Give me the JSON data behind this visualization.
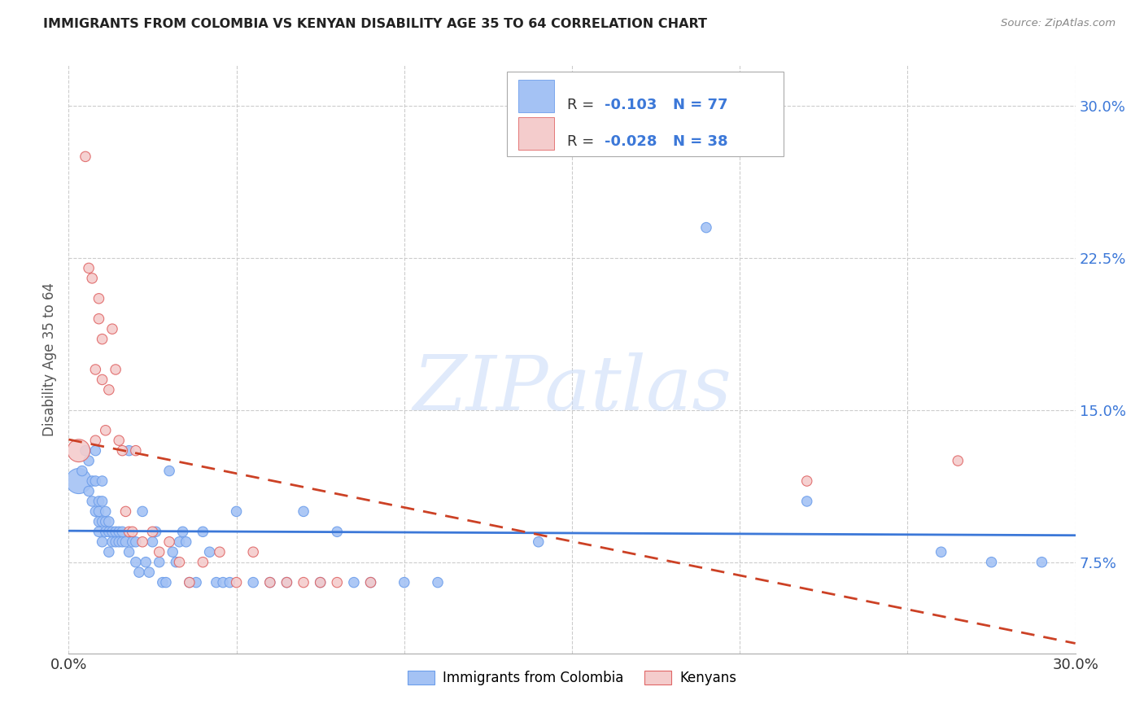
{
  "title": "IMMIGRANTS FROM COLOMBIA VS KENYAN DISABILITY AGE 35 TO 64 CORRELATION CHART",
  "source": "Source: ZipAtlas.com",
  "ylabel": "Disability Age 35 to 64",
  "ytick_labels": [
    "7.5%",
    "15.0%",
    "22.5%",
    "30.0%"
  ],
  "ytick_values": [
    0.075,
    0.15,
    0.225,
    0.3
  ],
  "xlim": [
    0.0,
    0.3
  ],
  "ylim": [
    0.03,
    0.32
  ],
  "blue_color": "#a4c2f4",
  "pink_color": "#f4cccc",
  "blue_edge_color": "#6d9eeb",
  "pink_edge_color": "#e06666",
  "blue_line_color": "#3c78d8",
  "pink_line_color": "#cc4125",
  "watermark_text": "ZIPatlas",
  "legend_r1_black": "R = ",
  "legend_r1_blue": "-0.103",
  "legend_r1_n": "  N = 77",
  "legend_r2_black": "R = ",
  "legend_r2_pink": "-0.028",
  "legend_r2_n": "  N = 38",
  "colombia_x": [
    0.003,
    0.004,
    0.005,
    0.006,
    0.006,
    0.007,
    0.007,
    0.008,
    0.008,
    0.008,
    0.009,
    0.009,
    0.009,
    0.009,
    0.01,
    0.01,
    0.01,
    0.01,
    0.011,
    0.011,
    0.011,
    0.012,
    0.012,
    0.012,
    0.013,
    0.013,
    0.014,
    0.014,
    0.015,
    0.015,
    0.016,
    0.016,
    0.017,
    0.018,
    0.018,
    0.019,
    0.02,
    0.02,
    0.021,
    0.022,
    0.023,
    0.024,
    0.025,
    0.026,
    0.027,
    0.028,
    0.029,
    0.03,
    0.031,
    0.032,
    0.033,
    0.034,
    0.035,
    0.036,
    0.038,
    0.04,
    0.042,
    0.044,
    0.046,
    0.048,
    0.05,
    0.055,
    0.06,
    0.065,
    0.07,
    0.075,
    0.08,
    0.085,
    0.09,
    0.1,
    0.11,
    0.14,
    0.19,
    0.22,
    0.26,
    0.275,
    0.29
  ],
  "colombia_y": [
    0.115,
    0.12,
    0.13,
    0.11,
    0.125,
    0.105,
    0.115,
    0.1,
    0.115,
    0.13,
    0.09,
    0.1,
    0.105,
    0.095,
    0.095,
    0.105,
    0.115,
    0.085,
    0.09,
    0.095,
    0.1,
    0.08,
    0.09,
    0.095,
    0.085,
    0.09,
    0.085,
    0.09,
    0.09,
    0.085,
    0.085,
    0.09,
    0.085,
    0.13,
    0.08,
    0.085,
    0.085,
    0.075,
    0.07,
    0.1,
    0.075,
    0.07,
    0.085,
    0.09,
    0.075,
    0.065,
    0.065,
    0.12,
    0.08,
    0.075,
    0.085,
    0.09,
    0.085,
    0.065,
    0.065,
    0.09,
    0.08,
    0.065,
    0.065,
    0.065,
    0.1,
    0.065,
    0.065,
    0.065,
    0.1,
    0.065,
    0.09,
    0.065,
    0.065,
    0.065,
    0.065,
    0.085,
    0.24,
    0.105,
    0.08,
    0.075,
    0.075
  ],
  "colombia_sizes": [
    500,
    80,
    80,
    80,
    80,
    80,
    80,
    80,
    80,
    80,
    80,
    80,
    80,
    80,
    80,
    80,
    80,
    80,
    80,
    80,
    80,
    80,
    80,
    80,
    80,
    80,
    80,
    80,
    80,
    80,
    80,
    80,
    80,
    80,
    80,
    80,
    80,
    80,
    80,
    80,
    80,
    80,
    80,
    80,
    80,
    80,
    80,
    80,
    80,
    80,
    80,
    80,
    80,
    80,
    80,
    80,
    80,
    80,
    80,
    80,
    80,
    80,
    80,
    80,
    80,
    80,
    80,
    80,
    80,
    80,
    80,
    80,
    80,
    80,
    80,
    80,
    80
  ],
  "kenya_x": [
    0.003,
    0.005,
    0.006,
    0.007,
    0.008,
    0.008,
    0.009,
    0.009,
    0.01,
    0.01,
    0.011,
    0.012,
    0.013,
    0.014,
    0.015,
    0.016,
    0.017,
    0.018,
    0.019,
    0.02,
    0.022,
    0.025,
    0.027,
    0.03,
    0.033,
    0.036,
    0.04,
    0.045,
    0.05,
    0.055,
    0.06,
    0.065,
    0.07,
    0.075,
    0.08,
    0.09,
    0.22,
    0.265
  ],
  "kenya_y": [
    0.13,
    0.275,
    0.22,
    0.215,
    0.17,
    0.135,
    0.195,
    0.205,
    0.185,
    0.165,
    0.14,
    0.16,
    0.19,
    0.17,
    0.135,
    0.13,
    0.1,
    0.09,
    0.09,
    0.13,
    0.085,
    0.09,
    0.08,
    0.085,
    0.075,
    0.065,
    0.075,
    0.08,
    0.065,
    0.08,
    0.065,
    0.065,
    0.065,
    0.065,
    0.065,
    0.065,
    0.115,
    0.125
  ],
  "kenya_sizes": [
    400,
    80,
    80,
    80,
    80,
    80,
    80,
    80,
    80,
    80,
    80,
    80,
    80,
    80,
    80,
    80,
    80,
    80,
    80,
    80,
    80,
    80,
    80,
    80,
    80,
    80,
    80,
    80,
    80,
    80,
    80,
    80,
    80,
    80,
    80,
    80,
    80,
    80
  ]
}
